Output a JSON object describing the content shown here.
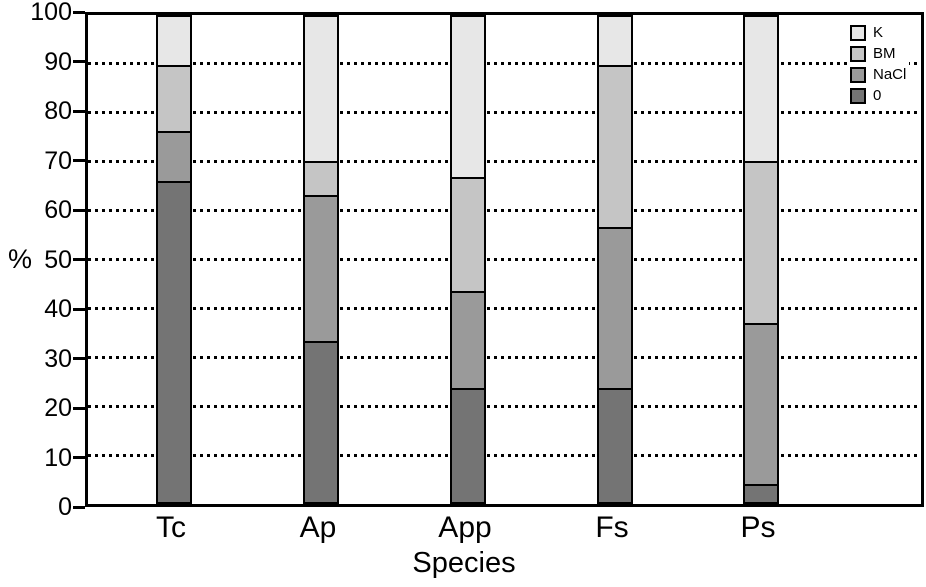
{
  "chart_data": {
    "type": "bar",
    "stacked": true,
    "title": "",
    "xlabel": "Species",
    "ylabel": "%",
    "ylim": [
      0,
      100
    ],
    "yticks": [
      0,
      10,
      20,
      30,
      40,
      50,
      60,
      70,
      80,
      90,
      100
    ],
    "grid": "horizontal dotted lines at 10 through 90",
    "legend_position": "top-right inside plot",
    "legend_order_top_to_bottom": [
      "K",
      "BM",
      "NaCl",
      "0"
    ],
    "categories": [
      "Tc",
      "Ap",
      "App",
      "Fs",
      "Ps"
    ],
    "series": [
      {
        "name": "0",
        "color": "#747474",
        "values": [
          66.7,
          33.3,
          23.3,
          23.3,
          3.3
        ]
      },
      {
        "name": "NaCl",
        "color": "#9a9a9a",
        "values": [
          10.0,
          30.0,
          20.0,
          33.3,
          33.3
        ]
      },
      {
        "name": "BM",
        "color": "#c5c5c5",
        "values": [
          13.3,
          6.7,
          23.3,
          33.3,
          33.3
        ]
      },
      {
        "name": "K",
        "color": "#e7e7e7",
        "values": [
          10.0,
          30.0,
          33.4,
          10.1,
          30.1
        ]
      }
    ]
  },
  "colors": {
    "axis": "#000000",
    "background": "#ffffff"
  }
}
